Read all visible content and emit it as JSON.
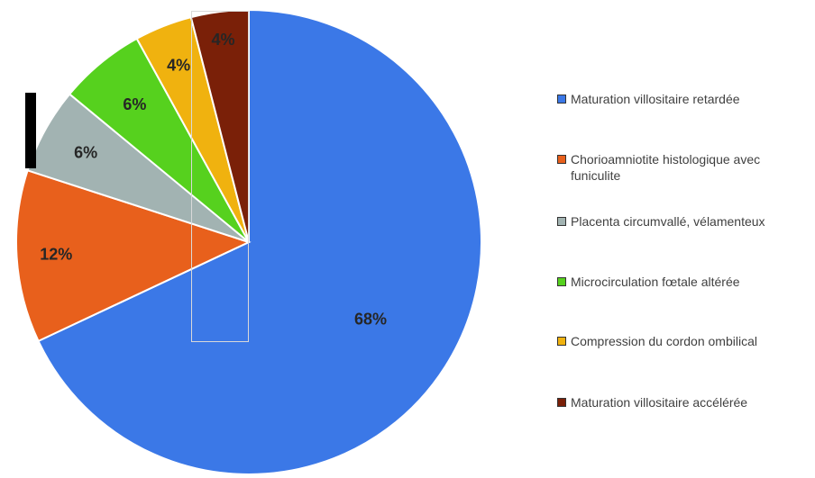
{
  "chart_data": {
    "type": "pie",
    "title": "",
    "slices": [
      {
        "label": "Maturation villositaire retardée",
        "value": 68,
        "display": "68%",
        "color": "#3b78e7"
      },
      {
        "label": "Chorioamniotite histologique avec funiculite",
        "value": 12,
        "display": "12%",
        "color": "#e8601c"
      },
      {
        "label": "Placenta circumvallé, vélamenteux",
        "value": 6,
        "display": "6%",
        "color": "#a2b3b2"
      },
      {
        "label": "Microcirculation fœtale altérée",
        "value": 6,
        "display": "6%",
        "color": "#56d11e"
      },
      {
        "label": "Compression du cordon ombilical",
        "value": 4,
        "display": "4%",
        "color": "#f0b20f"
      },
      {
        "label": "Maturation villositaire accélérée",
        "value": 4,
        "display": "4%",
        "color": "#7a2008"
      }
    ],
    "legend_position": "right"
  },
  "legend": {
    "items": [
      {
        "label": "Maturation villositaire retardée",
        "color": "#3b78e7"
      },
      {
        "label": "Chorioamniotite histologique avec funiculite",
        "color": "#e8601c"
      },
      {
        "label": "Placenta circumvallé, vélamenteux",
        "color": "#a2b3b2"
      },
      {
        "label": "Microcirculation fœtale altérée",
        "color": "#56d11e"
      },
      {
        "label": "Compression du cordon ombilical",
        "color": "#f0b20f"
      },
      {
        "label": "Maturation villositaire accélérée",
        "color": "#7a2008"
      }
    ]
  }
}
